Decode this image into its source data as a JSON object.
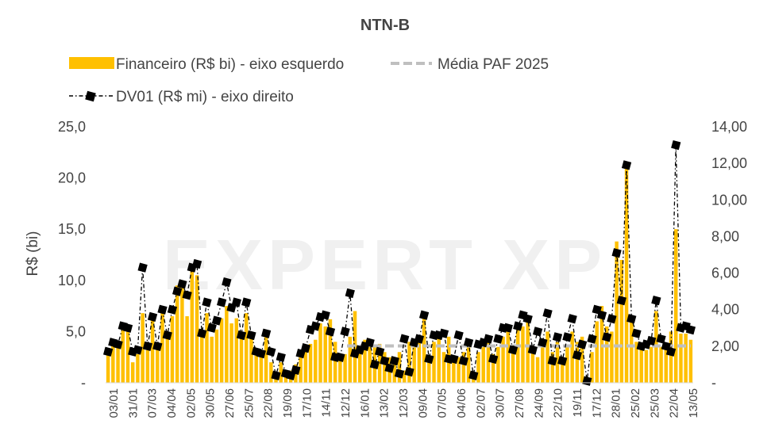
{
  "chart_data": {
    "type": "bar",
    "title": "NTN-B",
    "ylabel": "R$ (bi)",
    "ylim": [
      0,
      25
    ],
    "y2lim": [
      0,
      14
    ],
    "yticks": [
      "-",
      "5,0",
      "10,0",
      "15,0",
      "20,0",
      "25,0"
    ],
    "y2ticks": [
      "-",
      "2,00",
      "4,00",
      "6,00",
      "8,00",
      "10,00",
      "12,00",
      "14,00"
    ],
    "legend": {
      "bars": "Financeiro (R$ bi) - eixo esquerdo",
      "avg": "Média PAF 2025",
      "line": "DV01 (R$ mi) - eixo direito"
    },
    "x_tick_labels": [
      "03/01",
      "31/01",
      "07/03",
      "04/04",
      "02/05",
      "30/05",
      "27/06",
      "25/07",
      "22/08",
      "19/09",
      "17/10",
      "14/11",
      "12/12",
      "16/01",
      "13/02",
      "12/03",
      "09/04",
      "07/05",
      "04/06",
      "02/07",
      "30/07",
      "27/08",
      "24/09",
      "22/10",
      "19/11",
      "17/12",
      "28/01",
      "25/02",
      "25/03",
      "22/04",
      "13/05"
    ],
    "avg_value": 3.6,
    "series": [
      {
        "name": "Financeiro (R$ bi) - eixo esquerdo",
        "axis": "left",
        "values": [
          2.8,
          3.8,
          3.5,
          5.2,
          5.0,
          2.0,
          2.8,
          6.8,
          3.2,
          6.3,
          3.5,
          6.8,
          4.5,
          6.5,
          9.5,
          10.0,
          6.5,
          11.0,
          10.5,
          4.5,
          6.8,
          4.5,
          5.2,
          6.3,
          7.5,
          5.8,
          6.3,
          5.0,
          6.8,
          4.5,
          2.8,
          3.2,
          5.0,
          2.0,
          0.8,
          2.0,
          1.0,
          1.2,
          1.8,
          2.8,
          3.5,
          3.8,
          4.2,
          5.8,
          5.5,
          6.2,
          4.0,
          2.5,
          2.8,
          4.5,
          7.0,
          3.0,
          4.2,
          3.5,
          3.5,
          3.8,
          3.0,
          2.5,
          2.0,
          3.0,
          1.2,
          4.0,
          3.5,
          4.0,
          6.5,
          2.5,
          4.0,
          4.5,
          3.0,
          4.5,
          2.5,
          2.5,
          3.0,
          4.0,
          1.0,
          3.0,
          3.5,
          4.0,
          2.8,
          3.5,
          4.5,
          5.5,
          3.5,
          5.5,
          5.5,
          6.5,
          3.0,
          2.5,
          4.0,
          5.0,
          3.0,
          4.0,
          2.5,
          3.5,
          5.0,
          4.0,
          4.5,
          0.5,
          3.0,
          6.0,
          7.5,
          5.5,
          5.0,
          13.8,
          12.0,
          21.0,
          6.5,
          4.0,
          3.5,
          3.2,
          3.5,
          7.0,
          3.5,
          3.8,
          5.0,
          15.0,
          4.8,
          4.8,
          4.2
        ]
      },
      {
        "name": "DV01 (R$ mi) - eixo direito",
        "axis": "right",
        "values": [
          1.7,
          2.2,
          2.1,
          3.1,
          3.0,
          1.7,
          1.8,
          6.3,
          2.0,
          3.6,
          2.0,
          4.0,
          2.6,
          4.0,
          5.0,
          5.4,
          4.8,
          6.3,
          6.5,
          2.7,
          4.4,
          3.0,
          3.4,
          4.4,
          5.5,
          4.1,
          4.4,
          2.6,
          4.4,
          2.6,
          1.7,
          1.6,
          2.7,
          1.7,
          0.4,
          1.4,
          0.5,
          0.4,
          0.7,
          1.6,
          1.9,
          2.9,
          3.1,
          3.6,
          3.7,
          2.8,
          1.4,
          1.4,
          2.8,
          4.9,
          1.6,
          1.8,
          2.0,
          2.2,
          1.0,
          1.7,
          1.2,
          0.8,
          1.2,
          0.5,
          2.4,
          0.6,
          2.2,
          2.4,
          3.7,
          1.3,
          2.6,
          2.6,
          2.7,
          1.3,
          1.3,
          2.6,
          1.2,
          2.2,
          0.4,
          2.1,
          2.2,
          2.4,
          1.3,
          2.4,
          3.0,
          3.0,
          1.8,
          3.1,
          3.7,
          3.5,
          1.8,
          2.8,
          2.2,
          3.8,
          1.2,
          2.5,
          1.2,
          2.5,
          3.5,
          1.5,
          2.1,
          0.1,
          2.4,
          4.0,
          3.7,
          2.5,
          3.5,
          7.1,
          4.5,
          11.9,
          3.5,
          2.7,
          2.0,
          2.1,
          2.3,
          4.5,
          2.4,
          2.0,
          1.7,
          13.0,
          3.0,
          3.1,
          2.9
        ]
      }
    ],
    "watermark": "EXPERT XP",
    "legend_placement": "top",
    "grid": false
  }
}
